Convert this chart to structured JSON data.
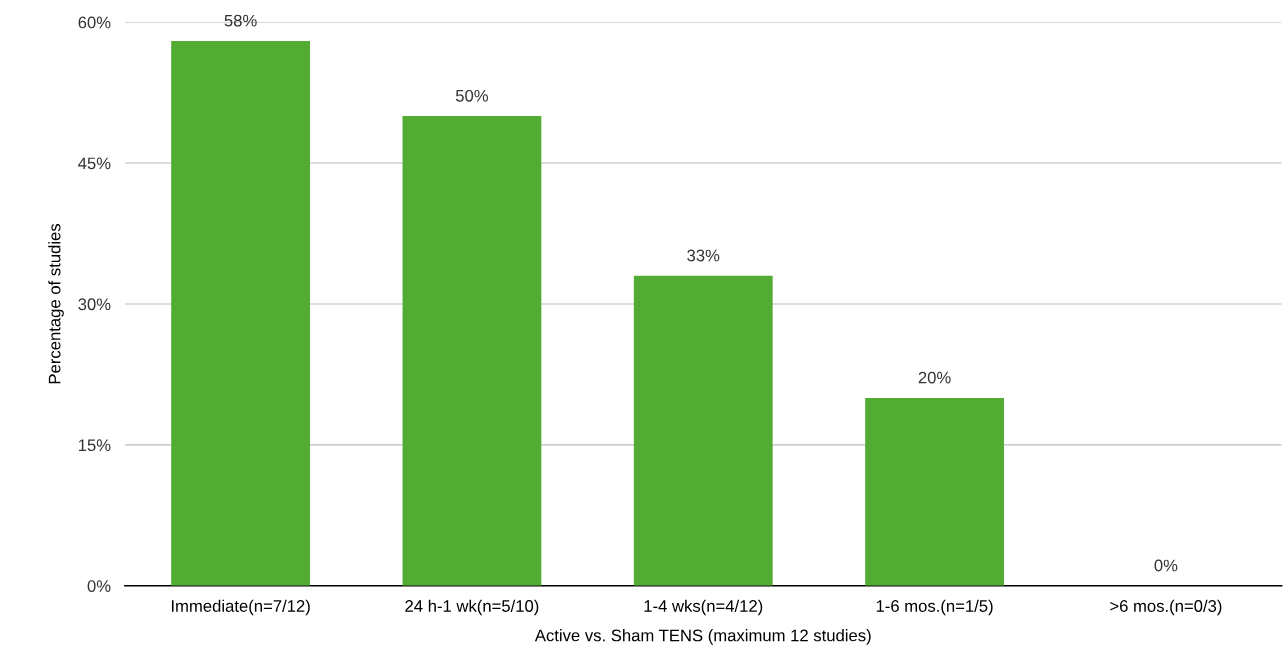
{
  "chart_data": {
    "type": "bar",
    "xlabel": "Active vs. Sham TENS (maximum 12 studies)",
    "ylabel": "Percentage of studies",
    "categories": [
      "Immediate(n=7/12)",
      "24 h-1 wk(n=5/10)",
      "1-4 wks(n=4/12)",
      "1-6 mos.(n=1/5)",
      ">6 mos.(n=0/3)"
    ],
    "values": [
      58,
      50,
      33,
      20,
      0
    ],
    "value_labels": [
      "58%",
      "50%",
      "33%",
      "20%",
      "0%"
    ],
    "color": "#52ab32",
    "ylim": [
      0,
      60
    ],
    "yticks": [
      {
        "value": 0,
        "label": "0%"
      },
      {
        "value": 15,
        "label": "15%"
      },
      {
        "value": 30,
        "label": "30%"
      },
      {
        "value": 45,
        "label": "45%"
      },
      {
        "value": 60,
        "label": "60%"
      }
    ],
    "grid": "y"
  }
}
